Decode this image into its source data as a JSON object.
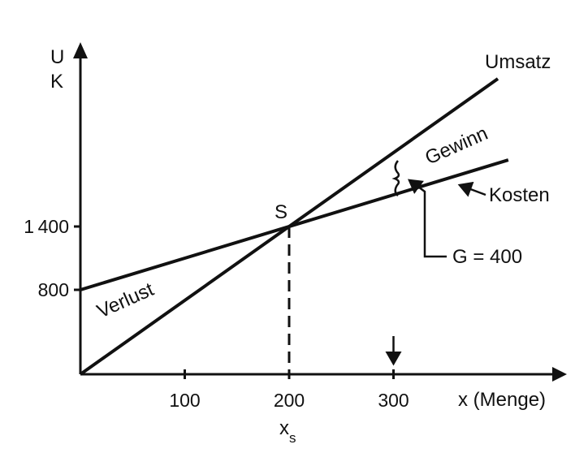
{
  "chart_data": {
    "type": "line",
    "title": "",
    "xlabel": "x (Menge)",
    "ylabel_top": "U",
    "ylabel_bottom": "K",
    "xlim": [
      0,
      460
    ],
    "ylim": [
      0,
      3260
    ],
    "x_ticks": [
      100,
      200,
      300
    ],
    "y_ticks": [
      800,
      1400
    ],
    "grid": false,
    "series": [
      {
        "name": "Umsatz",
        "x": [
          0,
          400
        ],
        "y": [
          0,
          2800
        ]
      },
      {
        "name": "Kosten",
        "x": [
          0,
          410
        ],
        "y": [
          800,
          2030
        ]
      }
    ],
    "break_even": {
      "label": "S",
      "x": 200,
      "y": 1400,
      "x_label": "x",
      "x_subscript": "s"
    },
    "marker_x": 300,
    "annotations": {
      "loss": "Verlust",
      "profit": "Gewinn",
      "profit_value": "G = 400"
    },
    "colors": {
      "line": "#111111",
      "background": "#ffffff"
    }
  }
}
